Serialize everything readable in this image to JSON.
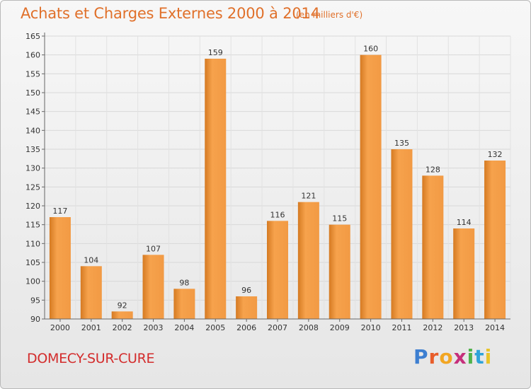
{
  "header": {
    "title": "Achats et Charges Externes 2000 à 2014",
    "unit": "(en milliers d'€)"
  },
  "footer": {
    "city": "DOMECY-SUR-CURE",
    "logo": {
      "letters": [
        "P",
        "r",
        "o",
        "x",
        "i",
        "t",
        "i"
      ],
      "colors": [
        "#3d7fd1",
        "#e85d2a",
        "#f2a623",
        "#c62f7b",
        "#4fb24a",
        "#2ea3d9",
        "#e8c42a"
      ]
    }
  },
  "colors": {
    "bar_light": "#f6a24c",
    "bar_dark": "#d57a22",
    "title": "#e0702a",
    "city": "#d32c2c"
  },
  "chart_data": {
    "type": "bar",
    "categories": [
      "2000",
      "2001",
      "2002",
      "2003",
      "2004",
      "2005",
      "2006",
      "2007",
      "2008",
      "2009",
      "2010",
      "2011",
      "2012",
      "2013",
      "2014"
    ],
    "values": [
      117,
      104,
      92,
      107,
      98,
      159,
      96,
      116,
      121,
      115,
      160,
      135,
      128,
      114,
      132
    ],
    "ylim": [
      90,
      165
    ],
    "yticks": [
      90,
      95,
      100,
      105,
      110,
      115,
      120,
      125,
      130,
      135,
      140,
      145,
      150,
      155,
      160,
      165
    ],
    "grid": true
  }
}
